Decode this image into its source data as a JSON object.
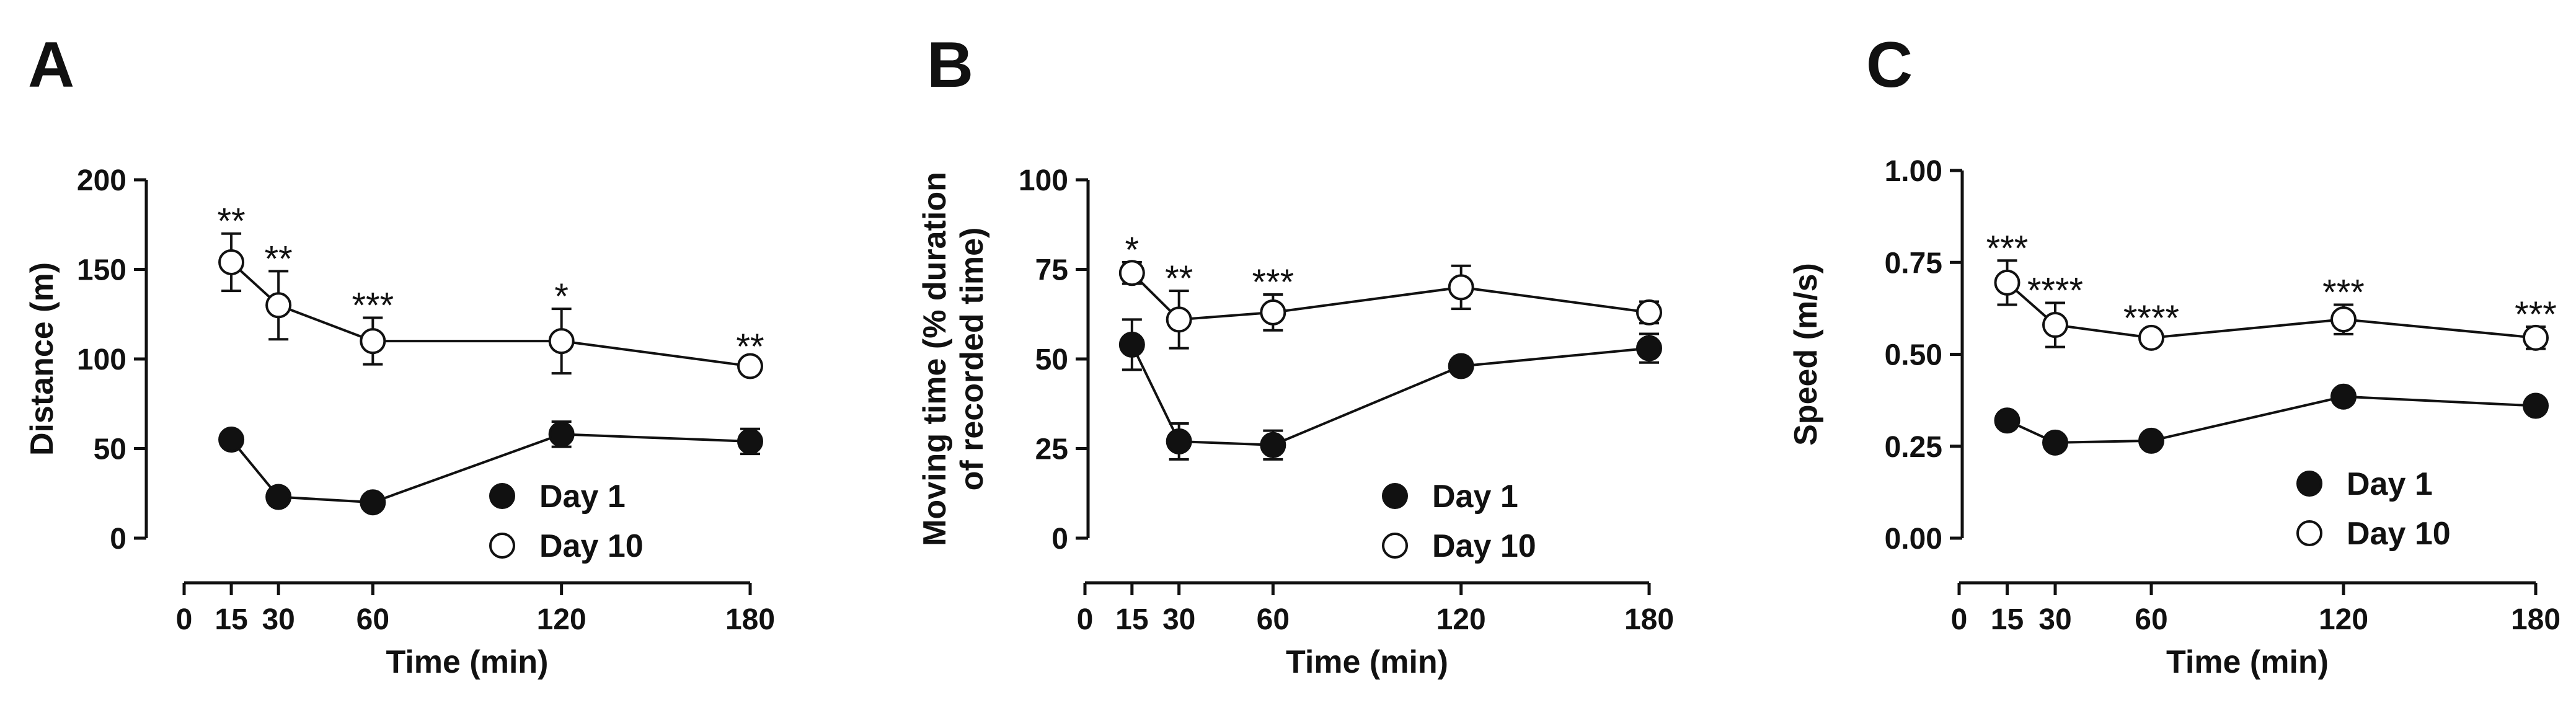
{
  "figure": {
    "background": "#ffffff",
    "line_color": "#111111"
  },
  "chart_data": [
    {
      "type": "line",
      "panel_label": "A",
      "title": "",
      "xlabel": "Time (min)",
      "ylabel": [
        "Distance (m)"
      ],
      "xlim": [
        0,
        180
      ],
      "ylim": [
        0,
        200
      ],
      "x_ticks": [
        0,
        15,
        30,
        60,
        120,
        180
      ],
      "x_tick_labels": [
        "0",
        "15",
        "30",
        "60",
        "120",
        "180"
      ],
      "y_ticks": [
        0,
        50,
        100,
        150,
        200
      ],
      "y_tick_labels": [
        "0",
        "50",
        "100",
        "150",
        "200"
      ],
      "x": [
        15,
        30,
        60,
        120,
        180
      ],
      "series": [
        {
          "name": "Day 1",
          "marker": "filled",
          "values": [
            55,
            23,
            20,
            58,
            54
          ],
          "errors": [
            4,
            3,
            3,
            7,
            7
          ]
        },
        {
          "name": "Day 10",
          "marker": "open",
          "values": [
            154,
            130,
            110,
            110,
            96
          ],
          "errors": [
            16,
            19,
            13,
            18,
            4
          ]
        }
      ],
      "significance": [
        "**",
        "**",
        "***",
        "*",
        "**"
      ],
      "legend": [
        "Day 1",
        "Day 10"
      ],
      "legend_position": "bottom-right",
      "grid": false
    },
    {
      "type": "line",
      "panel_label": "B",
      "title": "",
      "xlabel": "Time (min)",
      "ylabel": [
        "Moving time (% duration",
        "of recorded time)"
      ],
      "xlim": [
        0,
        180
      ],
      "ylim": [
        0,
        100
      ],
      "x_ticks": [
        0,
        15,
        30,
        60,
        120,
        180
      ],
      "x_tick_labels": [
        "0",
        "15",
        "30",
        "60",
        "120",
        "180"
      ],
      "y_ticks": [
        0,
        25,
        50,
        75,
        100
      ],
      "y_tick_labels": [
        "0",
        "25",
        "50",
        "75",
        "100"
      ],
      "x": [
        15,
        30,
        60,
        120,
        180
      ],
      "series": [
        {
          "name": "Day 1",
          "marker": "filled",
          "values": [
            54,
            27,
            26,
            48,
            53
          ],
          "errors": [
            7,
            5,
            4,
            2,
            4
          ]
        },
        {
          "name": "Day 10",
          "marker": "open",
          "values": [
            74,
            61,
            63,
            70,
            63
          ],
          "errors": [
            3,
            8,
            5,
            6,
            3
          ]
        }
      ],
      "significance": [
        "*",
        "**",
        "***",
        "",
        ""
      ],
      "legend": [
        "Day 1",
        "Day 10"
      ],
      "legend_position": "bottom-right",
      "grid": false
    },
    {
      "type": "line",
      "panel_label": "C",
      "title": "",
      "xlabel": "Time (min)",
      "ylabel": [
        "Speed (m/s)"
      ],
      "xlim": [
        0,
        180
      ],
      "ylim": [
        0,
        1
      ],
      "x_ticks": [
        0,
        15,
        30,
        60,
        120,
        180
      ],
      "x_tick_labels": [
        "0",
        "15",
        "30",
        "60",
        "120",
        "180"
      ],
      "y_ticks": [
        0,
        0.25,
        0.5,
        0.75,
        1
      ],
      "y_tick_labels": [
        "0.00",
        "0.25",
        "0.50",
        "0.75",
        "1.00"
      ],
      "x": [
        15,
        30,
        60,
        120,
        180
      ],
      "series": [
        {
          "name": "Day 1",
          "marker": "filled",
          "values": [
            0.32,
            0.26,
            0.265,
            0.385,
            0.36
          ],
          "errors": [
            0.02,
            0.015,
            0.015,
            0.02,
            0.02
          ]
        },
        {
          "name": "Day 10",
          "marker": "open",
          "values": [
            0.695,
            0.58,
            0.545,
            0.595,
            0.545
          ],
          "errors": [
            0.06,
            0.06,
            0.02,
            0.04,
            0.03
          ]
        }
      ],
      "significance": [
        "***",
        "****",
        "****",
        "***",
        "***"
      ],
      "legend": [
        "Day 1",
        "Day 10"
      ],
      "legend_position": "bottom-right",
      "grid": false
    }
  ]
}
